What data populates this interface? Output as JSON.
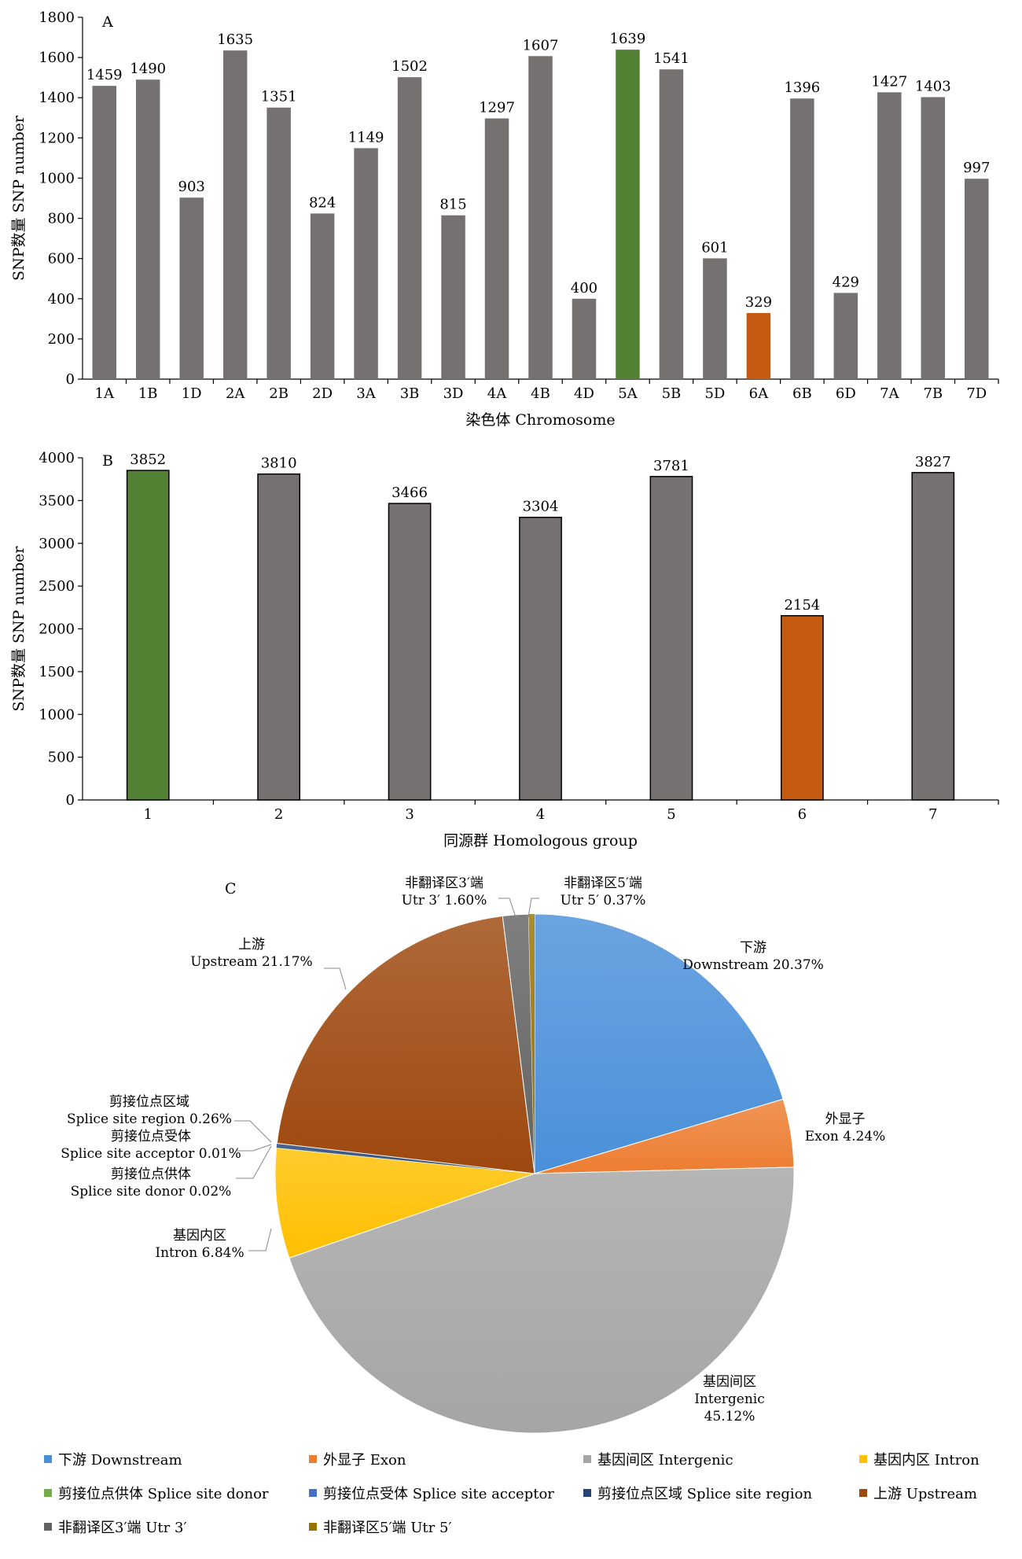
{
  "chart_data": [
    {
      "type": "bar",
      "panel": "A",
      "xlabel": "染色体 Chromosome",
      "ylabel": "SNP数量 SNP number",
      "ylim": [
        0,
        1800
      ],
      "yticks": [
        0,
        200,
        400,
        600,
        800,
        1000,
        1200,
        1400,
        1600,
        1800
      ],
      "categories": [
        "1A",
        "1B",
        "1D",
        "2A",
        "2B",
        "2D",
        "3A",
        "3B",
        "3D",
        "4A",
        "4B",
        "4D",
        "5A",
        "5B",
        "5D",
        "6A",
        "6B",
        "6D",
        "7A",
        "7B",
        "7D"
      ],
      "values": [
        1459,
        1490,
        903,
        1635,
        1351,
        824,
        1149,
        1502,
        815,
        1297,
        1607,
        400,
        1639,
        1541,
        601,
        329,
        1396,
        429,
        1427,
        1403,
        997
      ],
      "highlight_max": "5A",
      "highlight_min": "6A",
      "grid": false
    },
    {
      "type": "bar",
      "panel": "B",
      "xlabel": "同源群 Homologous group",
      "ylabel": "SNP数量 SNP number",
      "ylim": [
        0,
        4000
      ],
      "yticks": [
        0,
        500,
        1000,
        1500,
        2000,
        2500,
        3000,
        3500,
        4000
      ],
      "categories": [
        "1",
        "2",
        "3",
        "4",
        "5",
        "6",
        "7"
      ],
      "values": [
        3852,
        3810,
        3466,
        3304,
        3781,
        2154,
        3827
      ],
      "highlight_max": "1",
      "highlight_min": "6",
      "grid": false
    },
    {
      "type": "pie",
      "panel": "C",
      "slices": [
        {
          "key": "downstream",
          "value": 20.37,
          "label_cn": "下游",
          "label_en": "Downstream 20.37%",
          "legend": "下游 Downstream",
          "color": "#4a90d9"
        },
        {
          "key": "exon",
          "value": 4.24,
          "label_cn": "外显子",
          "label_en": "Exon 4.24%",
          "legend": "外显子 Exon",
          "color": "#ed7d31"
        },
        {
          "key": "intergenic",
          "value": 45.12,
          "label_cn": "基因间区",
          "label_en": "Intergenic",
          "label_pct": "45.12%",
          "legend": "基因间区 Intergenic",
          "color": "#a5a5a5"
        },
        {
          "key": "intron",
          "value": 6.84,
          "label_cn": "基因内区",
          "label_en": "Intron 6.84%",
          "legend": "基因内区 Intron",
          "color": "#ffc000"
        },
        {
          "key": "donor",
          "value": 0.02,
          "label_cn": "剪接位点供体",
          "label_en": "Splice site donor 0.02%",
          "legend": "剪接位点供体 Splice site donor",
          "color": "#70ad47"
        },
        {
          "key": "acceptor",
          "value": 0.01,
          "label_cn": "剪接位点受体",
          "label_en": "Splice site acceptor 0.01%",
          "legend": "剪接位点受体 Splice site acceptor",
          "color": "#4472c4"
        },
        {
          "key": "region",
          "value": 0.26,
          "label_cn": "剪接位点区域",
          "label_en": "Splice site region 0.26%",
          "legend": "剪接位点区域 Splice site region",
          "color": "#264478"
        },
        {
          "key": "upstream",
          "value": 21.17,
          "label_cn": "上游",
          "label_en": "Upstream 21.17%",
          "legend": "上游 Upstream",
          "color": "#9e480e"
        },
        {
          "key": "utr3",
          "value": 1.6,
          "label_cn": "非翻译区3′端",
          "label_en": "Utr 3′ 1.60%",
          "legend": "非翻译区3′端 Utr 3′",
          "color": "#636363"
        },
        {
          "key": "utr5",
          "value": 0.37,
          "label_cn": "非翻译区5′端",
          "label_en": "Utr 5′ 0.37%",
          "legend": "非翻译区5′端 Utr 5′",
          "color": "#997300"
        }
      ]
    }
  ],
  "colors": {
    "bar_default": "#767171",
    "bar_max": "#548235",
    "bar_min": "#c55a11"
  }
}
